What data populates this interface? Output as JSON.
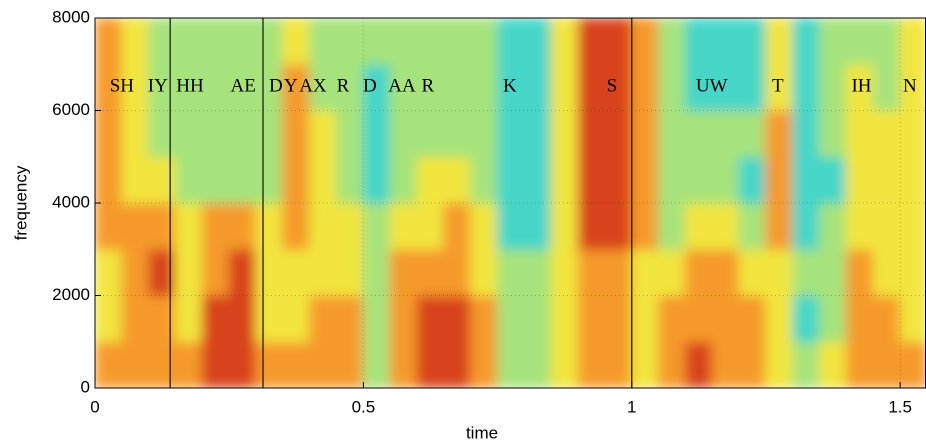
{
  "chart_data": {
    "type": "spectrogram",
    "xlabel": "time",
    "ylabel": "frequency",
    "xlim": [
      0,
      1.55
    ],
    "ylim": [
      0,
      8000
    ],
    "xticks": [
      0,
      0.5,
      1,
      1.5
    ],
    "yticks": [
      0,
      2000,
      4000,
      6000,
      8000
    ],
    "grid": true,
    "boundaries": [
      0.14,
      0.313,
      1.0
    ],
    "colormap": [
      "#45d6c8",
      "#a6e37c",
      "#f2e53e",
      "#f59a2c",
      "#d8421d"
    ],
    "time_bins": [
      0,
      0.05,
      0.1,
      0.15,
      0.2,
      0.25,
      0.3,
      0.35,
      0.4,
      0.45,
      0.5,
      0.55,
      0.6,
      0.65,
      0.7,
      0.75,
      0.8,
      0.85,
      0.9,
      0.95,
      1.0,
      1.05,
      1.1,
      1.15,
      1.2,
      1.25,
      1.3,
      1.35,
      1.4,
      1.45,
      1.5,
      1.55
    ],
    "freq_bins": [
      0,
      1000,
      2000,
      3000,
      4000,
      5000,
      6000,
      7000,
      8000
    ],
    "z": [
      [
        3,
        2,
        2,
        3,
        3,
        3,
        3,
        3
      ],
      [
        3,
        3,
        3,
        3,
        2,
        2,
        2,
        2
      ],
      [
        3,
        3,
        4,
        3,
        2,
        1,
        1,
        1
      ],
      [
        3,
        2,
        2,
        2,
        1,
        1,
        1,
        1
      ],
      [
        4,
        4,
        3,
        3,
        1,
        1,
        1,
        1
      ],
      [
        4,
        4,
        4,
        3,
        1,
        1,
        1,
        1
      ],
      [
        3,
        2,
        2,
        2,
        1,
        1,
        1,
        1
      ],
      [
        3,
        2,
        2,
        3,
        3,
        3,
        3,
        2
      ],
      [
        3,
        3,
        2,
        2,
        2,
        2,
        1,
        1
      ],
      [
        3,
        3,
        2,
        2,
        1,
        1,
        1,
        1
      ],
      [
        1,
        1,
        1,
        1,
        0,
        0,
        0,
        1
      ],
      [
        3,
        3,
        3,
        2,
        1,
        1,
        1,
        1
      ],
      [
        4,
        4,
        3,
        2,
        2,
        1,
        1,
        1
      ],
      [
        4,
        4,
        3,
        3,
        2,
        1,
        1,
        1
      ],
      [
        3,
        3,
        2,
        2,
        1,
        1,
        1,
        1
      ],
      [
        1,
        1,
        1,
        0,
        0,
        0,
        0,
        0
      ],
      [
        1,
        1,
        1,
        0,
        0,
        0,
        0,
        0
      ],
      [
        2,
        2,
        2,
        2,
        2,
        2,
        2,
        2
      ],
      [
        3,
        3,
        3,
        4,
        4,
        4,
        4,
        4
      ],
      [
        3,
        3,
        3,
        4,
        4,
        4,
        4,
        4
      ],
      [
        2,
        2,
        2,
        3,
        3,
        3,
        3,
        3
      ],
      [
        3,
        3,
        2,
        1,
        1,
        1,
        1,
        1
      ],
      [
        4,
        3,
        3,
        2,
        1,
        1,
        0,
        0
      ],
      [
        3,
        3,
        3,
        2,
        1,
        1,
        0,
        0
      ],
      [
        3,
        3,
        2,
        1,
        0,
        1,
        0,
        0
      ],
      [
        2,
        2,
        2,
        3,
        3,
        3,
        2,
        2
      ],
      [
        1,
        0,
        1,
        0,
        0,
        0,
        0,
        0
      ],
      [
        2,
        1,
        1,
        1,
        0,
        1,
        1,
        1
      ],
      [
        3,
        3,
        3,
        2,
        2,
        2,
        2,
        1
      ],
      [
        3,
        3,
        2,
        2,
        2,
        2,
        1,
        1
      ],
      [
        3,
        2,
        2,
        2,
        2,
        2,
        2,
        2
      ]
    ],
    "annotations": [
      {
        "text": "SH",
        "x": 0.05,
        "y": 6500
      },
      {
        "text": "IY",
        "x": 0.117,
        "y": 6500
      },
      {
        "text": "HH",
        "x": 0.177,
        "y": 6500
      },
      {
        "text": "AE",
        "x": 0.276,
        "y": 6500
      },
      {
        "text": "D",
        "x": 0.337,
        "y": 6500
      },
      {
        "text": "Y",
        "x": 0.365,
        "y": 6500
      },
      {
        "text": "AX",
        "x": 0.406,
        "y": 6500
      },
      {
        "text": "R",
        "x": 0.462,
        "y": 6500
      },
      {
        "text": "D",
        "x": 0.512,
        "y": 6500
      },
      {
        "text": "AA",
        "x": 0.572,
        "y": 6500
      },
      {
        "text": "R",
        "x": 0.62,
        "y": 6500
      },
      {
        "text": "K",
        "x": 0.773,
        "y": 6500
      },
      {
        "text": "S",
        "x": 0.963,
        "y": 6500
      },
      {
        "text": "UW",
        "x": 1.149,
        "y": 6500
      },
      {
        "text": "T",
        "x": 1.272,
        "y": 6500
      },
      {
        "text": "IH",
        "x": 1.428,
        "y": 6500
      },
      {
        "text": "N",
        "x": 1.518,
        "y": 6500
      }
    ]
  }
}
